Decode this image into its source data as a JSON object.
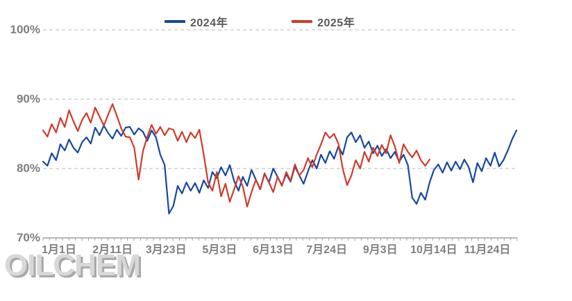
{
  "legend": {
    "items": [
      {
        "label": "2024年",
        "color": "#17479E"
      },
      {
        "label": "2025年",
        "color": "#D13A2A"
      }
    ]
  },
  "watermark": {
    "text": "OILCHEM"
  },
  "colors": {
    "background": "#FFFFFF",
    "gridline": "#C6C6C6",
    "axis_line": "#A0A0A0",
    "axis_text": "#7F7F7F",
    "legend_text": "#595959",
    "series_2024": "#17479E",
    "series_2025": "#D13A2A",
    "watermark_fill": "#D8D8D8",
    "watermark_shadow": "#A8A8A8"
  },
  "chart_data": {
    "type": "line",
    "title": "",
    "xlabel": "",
    "ylabel": "",
    "grid": "dashed horizontal",
    "legend_position": "top",
    "ylim": [
      70,
      100
    ],
    "y_ticks": [
      {
        "value": 100,
        "label": "100%"
      },
      {
        "value": 90,
        "label": "90%"
      },
      {
        "value": 80,
        "label": "80%"
      },
      {
        "value": 70,
        "label": "70%"
      }
    ],
    "gridline_values": [
      100,
      90,
      80
    ],
    "x_tick_labels": [
      "1月1日",
      "2月11日",
      "3月23日",
      "5月3日",
      "6月13日",
      "7月24日",
      "9月3日",
      "10月14日",
      "11月24日"
    ],
    "minor_tick_count": 74,
    "points_full_axis": 110,
    "series": [
      {
        "name": "2024年",
        "color": "#17479E",
        "values": [
          81.0,
          80.4,
          82.2,
          81.2,
          83.5,
          82.6,
          84.2,
          83.0,
          82.3,
          83.8,
          84.5,
          83.6,
          85.9,
          84.8,
          86.2,
          85.1,
          84.3,
          85.6,
          84.7,
          85.9,
          86.0,
          84.9,
          85.8,
          85.3,
          84.0,
          85.5,
          84.5,
          82.0,
          80.5,
          73.5,
          74.6,
          77.5,
          76.4,
          78.0,
          76.8,
          77.9,
          76.5,
          78.3,
          77.2,
          79.5,
          78.6,
          80.2,
          79.0,
          80.5,
          78.2,
          76.8,
          78.8,
          77.5,
          79.8,
          78.4,
          77.0,
          79.3,
          78.0,
          80.0,
          78.8,
          77.6,
          79.2,
          78.1,
          80.3,
          79.0,
          77.8,
          79.6,
          81.2,
          80.0,
          82.0,
          80.8,
          82.5,
          81.4,
          83.2,
          82.0,
          84.5,
          85.2,
          83.8,
          84.8,
          83.0,
          83.9,
          82.2,
          83.3,
          81.8,
          82.8,
          81.5,
          82.4,
          81.0,
          82.0,
          80.5,
          75.8,
          74.9,
          76.5,
          75.5,
          78.0,
          79.8,
          80.6,
          79.4,
          80.9,
          79.7,
          81.0,
          79.9,
          81.3,
          80.2,
          78.0,
          80.8,
          79.6,
          81.5,
          80.4,
          82.3,
          80.3,
          81.2,
          82.6,
          84.2,
          85.5
        ]
      },
      {
        "name": "2025年",
        "color": "#D13A2A",
        "values": [
          85.5,
          84.6,
          86.4,
          85.2,
          87.3,
          86.0,
          88.4,
          86.8,
          85.4,
          87.0,
          88.0,
          86.6,
          88.8,
          87.5,
          86.2,
          87.8,
          89.3,
          87.6,
          85.8,
          84.6,
          84.5,
          83.0,
          78.4,
          82.5,
          84.6,
          86.3,
          85.0,
          86.0,
          84.8,
          85.8,
          85.6,
          84.0,
          85.3,
          83.8,
          85.2,
          84.4,
          85.6,
          82.0,
          78.0,
          76.8,
          79.5,
          76.0,
          77.8,
          75.2,
          77.0,
          78.9,
          77.4,
          74.5,
          76.6,
          78.4,
          77.0,
          79.2,
          78.0,
          76.6,
          78.8,
          77.5,
          79.5,
          78.2,
          80.6,
          79.0,
          79.8,
          81.5,
          80.2,
          82.0,
          83.5,
          85.2,
          84.4,
          85.0,
          83.6,
          80.0,
          77.6,
          79.0,
          81.2,
          80.0,
          82.4,
          81.0,
          83.0,
          81.8,
          83.4,
          82.2,
          84.8,
          83.2,
          80.8,
          83.5,
          82.4,
          81.6,
          82.6,
          81.2,
          80.4,
          81.3
        ]
      }
    ]
  }
}
